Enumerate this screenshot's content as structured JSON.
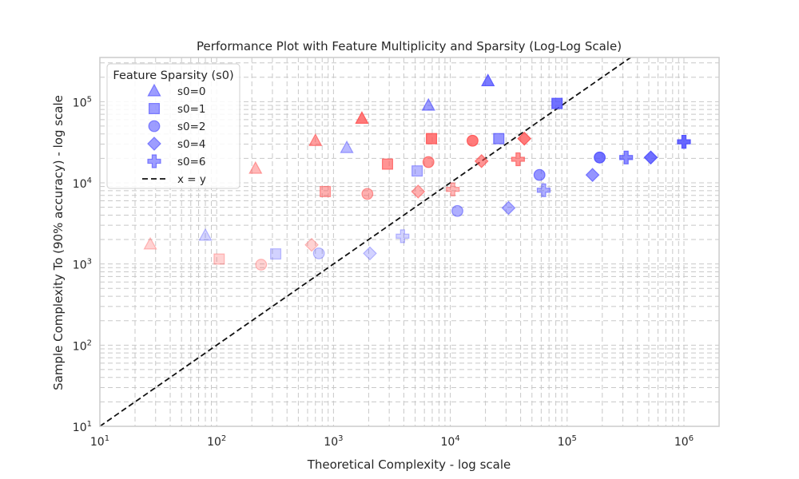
{
  "chart_data": {
    "type": "scatter",
    "title": "Performance Plot with Feature Multiplicity and Sparsity (Log-Log Scale)",
    "xlabel": "Theoretical Complexity - log scale",
    "ylabel": "Sample Complexity To (90% accuracy) - log scale",
    "xscale": "log",
    "yscale": "log",
    "xlim": [
      10,
      2000000
    ],
    "ylim": [
      10,
      350000
    ],
    "x_ticks": [
      {
        "value": 10,
        "base": "10",
        "exp": "1"
      },
      {
        "value": 100,
        "base": "10",
        "exp": "2"
      },
      {
        "value": 1000,
        "base": "10",
        "exp": "3"
      },
      {
        "value": 10000,
        "base": "10",
        "exp": "4"
      },
      {
        "value": 100000,
        "base": "10",
        "exp": "5"
      },
      {
        "value": 1000000,
        "base": "10",
        "exp": "6"
      }
    ],
    "y_ticks": [
      {
        "value": 10,
        "base": "10",
        "exp": "1"
      },
      {
        "value": 100,
        "base": "10",
        "exp": "2"
      },
      {
        "value": 1000,
        "base": "10",
        "exp": "3"
      },
      {
        "value": 10000,
        "base": "10",
        "exp": "4"
      },
      {
        "value": 100000,
        "base": "10",
        "exp": "5"
      }
    ],
    "grid": true,
    "legend_position": "top-left",
    "legend": {
      "title": "Feature Sparsity (s0)",
      "entries": [
        {
          "label": "s0=0",
          "marker": "triangle"
        },
        {
          "label": "s0=1",
          "marker": "square"
        },
        {
          "label": "s0=2",
          "marker": "circle"
        },
        {
          "label": "s0=4",
          "marker": "diamond"
        },
        {
          "label": "s0=6",
          "marker": "plus"
        },
        {
          "label": "x = y",
          "marker": "dashed-line"
        }
      ]
    },
    "reference_line": {
      "label": "x = y",
      "style": "dashed",
      "color": "#111111"
    },
    "colors": {
      "red": "#ff4d4d",
      "blue": "#4d4dff"
    },
    "series": [
      {
        "name": "s0=0",
        "marker": "triangle",
        "points": [
          {
            "x": 27,
            "y": 1750,
            "color": "red",
            "alpha": 0.25
          },
          {
            "x": 80,
            "y": 2250,
            "color": "blue",
            "alpha": 0.25
          },
          {
            "x": 215,
            "y": 15000,
            "color": "red",
            "alpha": 0.4
          },
          {
            "x": 700,
            "y": 33000,
            "color": "red",
            "alpha": 0.55
          },
          {
            "x": 1300,
            "y": 27000,
            "color": "blue",
            "alpha": 0.4
          },
          {
            "x": 1750,
            "y": 62000,
            "color": "red",
            "alpha": 0.75
          },
          {
            "x": 6500,
            "y": 90000,
            "color": "blue",
            "alpha": 0.55
          },
          {
            "x": 21000,
            "y": 180000,
            "color": "blue",
            "alpha": 0.75
          }
        ]
      },
      {
        "name": "s0=1",
        "marker": "square",
        "points": [
          {
            "x": 105,
            "y": 1150,
            "color": "red",
            "alpha": 0.25
          },
          {
            "x": 320,
            "y": 1330,
            "color": "blue",
            "alpha": 0.25
          },
          {
            "x": 850,
            "y": 7800,
            "color": "red",
            "alpha": 0.45
          },
          {
            "x": 2900,
            "y": 17000,
            "color": "red",
            "alpha": 0.6
          },
          {
            "x": 5200,
            "y": 14000,
            "color": "blue",
            "alpha": 0.4
          },
          {
            "x": 6900,
            "y": 35000,
            "color": "red",
            "alpha": 0.75
          },
          {
            "x": 26000,
            "y": 35000,
            "color": "blue",
            "alpha": 0.6
          },
          {
            "x": 82000,
            "y": 95000,
            "color": "blue",
            "alpha": 0.8
          }
        ]
      },
      {
        "name": "s0=2",
        "marker": "circle",
        "points": [
          {
            "x": 240,
            "y": 980,
            "color": "red",
            "alpha": 0.25
          },
          {
            "x": 750,
            "y": 1350,
            "color": "blue",
            "alpha": 0.25
          },
          {
            "x": 1950,
            "y": 7300,
            "color": "red",
            "alpha": 0.45
          },
          {
            "x": 6500,
            "y": 18000,
            "color": "red",
            "alpha": 0.6
          },
          {
            "x": 11500,
            "y": 4500,
            "color": "blue",
            "alpha": 0.45
          },
          {
            "x": 15500,
            "y": 33000,
            "color": "red",
            "alpha": 0.75
          },
          {
            "x": 58000,
            "y": 12500,
            "color": "blue",
            "alpha": 0.6
          },
          {
            "x": 190000,
            "y": 20500,
            "color": "blue",
            "alpha": 0.8
          }
        ]
      },
      {
        "name": "s0=4",
        "marker": "diamond",
        "points": [
          {
            "x": 650,
            "y": 1720,
            "color": "red",
            "alpha": 0.25
          },
          {
            "x": 2050,
            "y": 1350,
            "color": "blue",
            "alpha": 0.25
          },
          {
            "x": 5300,
            "y": 7800,
            "color": "red",
            "alpha": 0.45
          },
          {
            "x": 18500,
            "y": 18500,
            "color": "red",
            "alpha": 0.6
          },
          {
            "x": 31500,
            "y": 4900,
            "color": "blue",
            "alpha": 0.45
          },
          {
            "x": 43000,
            "y": 35000,
            "color": "red",
            "alpha": 0.75
          },
          {
            "x": 165000,
            "y": 12500,
            "color": "blue",
            "alpha": 0.6
          },
          {
            "x": 520000,
            "y": 20500,
            "color": "blue",
            "alpha": 0.8
          }
        ]
      },
      {
        "name": "s0=6",
        "marker": "plus",
        "points": [
          {
            "x": 3900,
            "y": 2200,
            "color": "blue",
            "alpha": 0.25
          },
          {
            "x": 10500,
            "y": 8300,
            "color": "red",
            "alpha": 0.4
          },
          {
            "x": 38000,
            "y": 19500,
            "color": "red",
            "alpha": 0.6
          },
          {
            "x": 63000,
            "y": 8100,
            "color": "blue",
            "alpha": 0.45
          },
          {
            "x": 320000,
            "y": 20500,
            "color": "blue",
            "alpha": 0.65
          },
          {
            "x": 1000000,
            "y": 32000,
            "color": "blue",
            "alpha": 0.85
          }
        ]
      }
    ]
  }
}
